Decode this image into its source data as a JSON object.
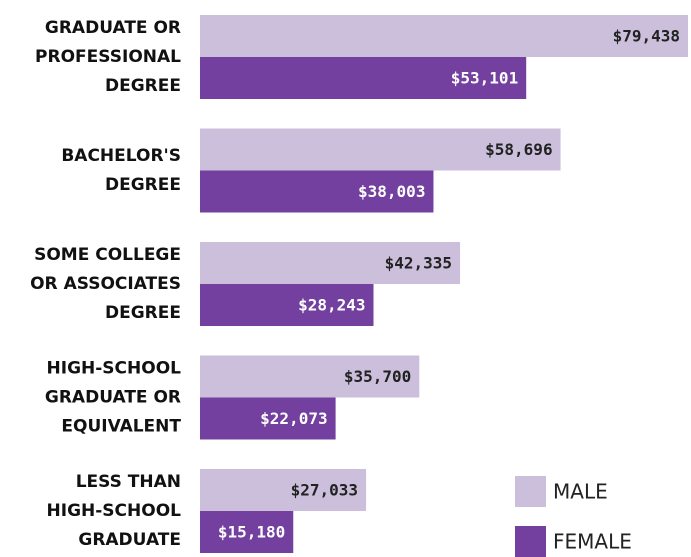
{
  "chart_data": {
    "type": "hbar",
    "categories": [
      [
        "GRADUATE OR",
        "PROFESSIONAL",
        "DEGREE"
      ],
      [
        "BACHELOR'S",
        "DEGREE"
      ],
      [
        "SOME COLLEGE",
        "OR ASSOCIATES",
        "DEGREE"
      ],
      [
        "HIGH-SCHOOL",
        "GRADUATE OR",
        "EQUIVALENT"
      ],
      [
        "LESS THAN",
        "HIGH-SCHOOL",
        "GRADUATE"
      ]
    ],
    "series": [
      {
        "name": "MALE",
        "color": "#cbbfdb",
        "values": [
          79438,
          58696,
          42335,
          35700,
          27033
        ],
        "value_labels": [
          "$79,438",
          "$58,696",
          "$42,335",
          "$35,700",
          "$27,033"
        ]
      },
      {
        "name": "FEMALE",
        "color": "#7340a0",
        "values": [
          53101,
          38003,
          28243,
          22073,
          15180
        ],
        "value_labels": [
          "$53,101",
          "$38,003",
          "$28,243",
          "$22,073",
          "$15,180"
        ]
      }
    ],
    "legend": "lower right"
  }
}
